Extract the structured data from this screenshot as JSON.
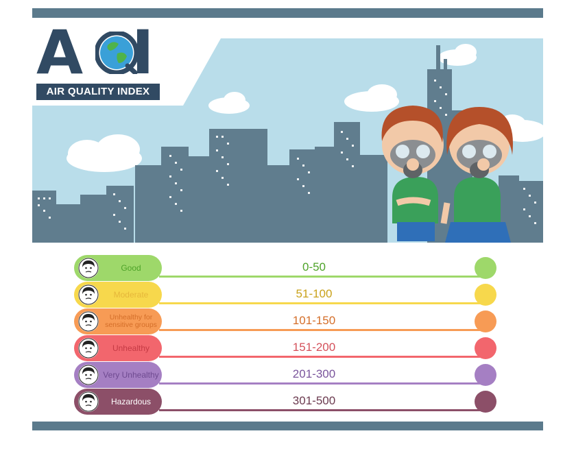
{
  "logo": {
    "title_letter_a": "A",
    "title_letter_q": "Q",
    "title_letter_i": "I",
    "subtitle": "AIR QUALITY INDEX"
  },
  "colors": {
    "frame_bar": "#5b7a8c",
    "sky": "#b9ddea",
    "buildings": "#607d8e",
    "logo_navy": "#314a63"
  },
  "levels": [
    {
      "label": "Good",
      "range": "0-50",
      "color": "#9ed86a",
      "text_color": "#4ea329",
      "range_color": "#4ea329"
    },
    {
      "label": "Moderate",
      "range": "51-100",
      "color": "#f7d84c",
      "text_color": "#e6b73a",
      "range_color": "#c9a21b"
    },
    {
      "label": "Unhealthy for sensitive groups",
      "range": "101-150",
      "color": "#f79b55",
      "text_color": "#d46e29",
      "range_color": "#d46e29"
    },
    {
      "label": "Unhealthy",
      "range": "151-200",
      "color": "#f2666d",
      "text_color": "#c53a44",
      "range_color": "#d4505a"
    },
    {
      "label": "Very Unhealthy",
      "range": "201-300",
      "color": "#a57fc3",
      "text_color": "#6e4a90",
      "range_color": "#7a559c"
    },
    {
      "label": "Hazardous",
      "range": "301-500",
      "color": "#8c4f68",
      "text_color": "#ffffff",
      "range_color": "#6b3a4f"
    }
  ]
}
